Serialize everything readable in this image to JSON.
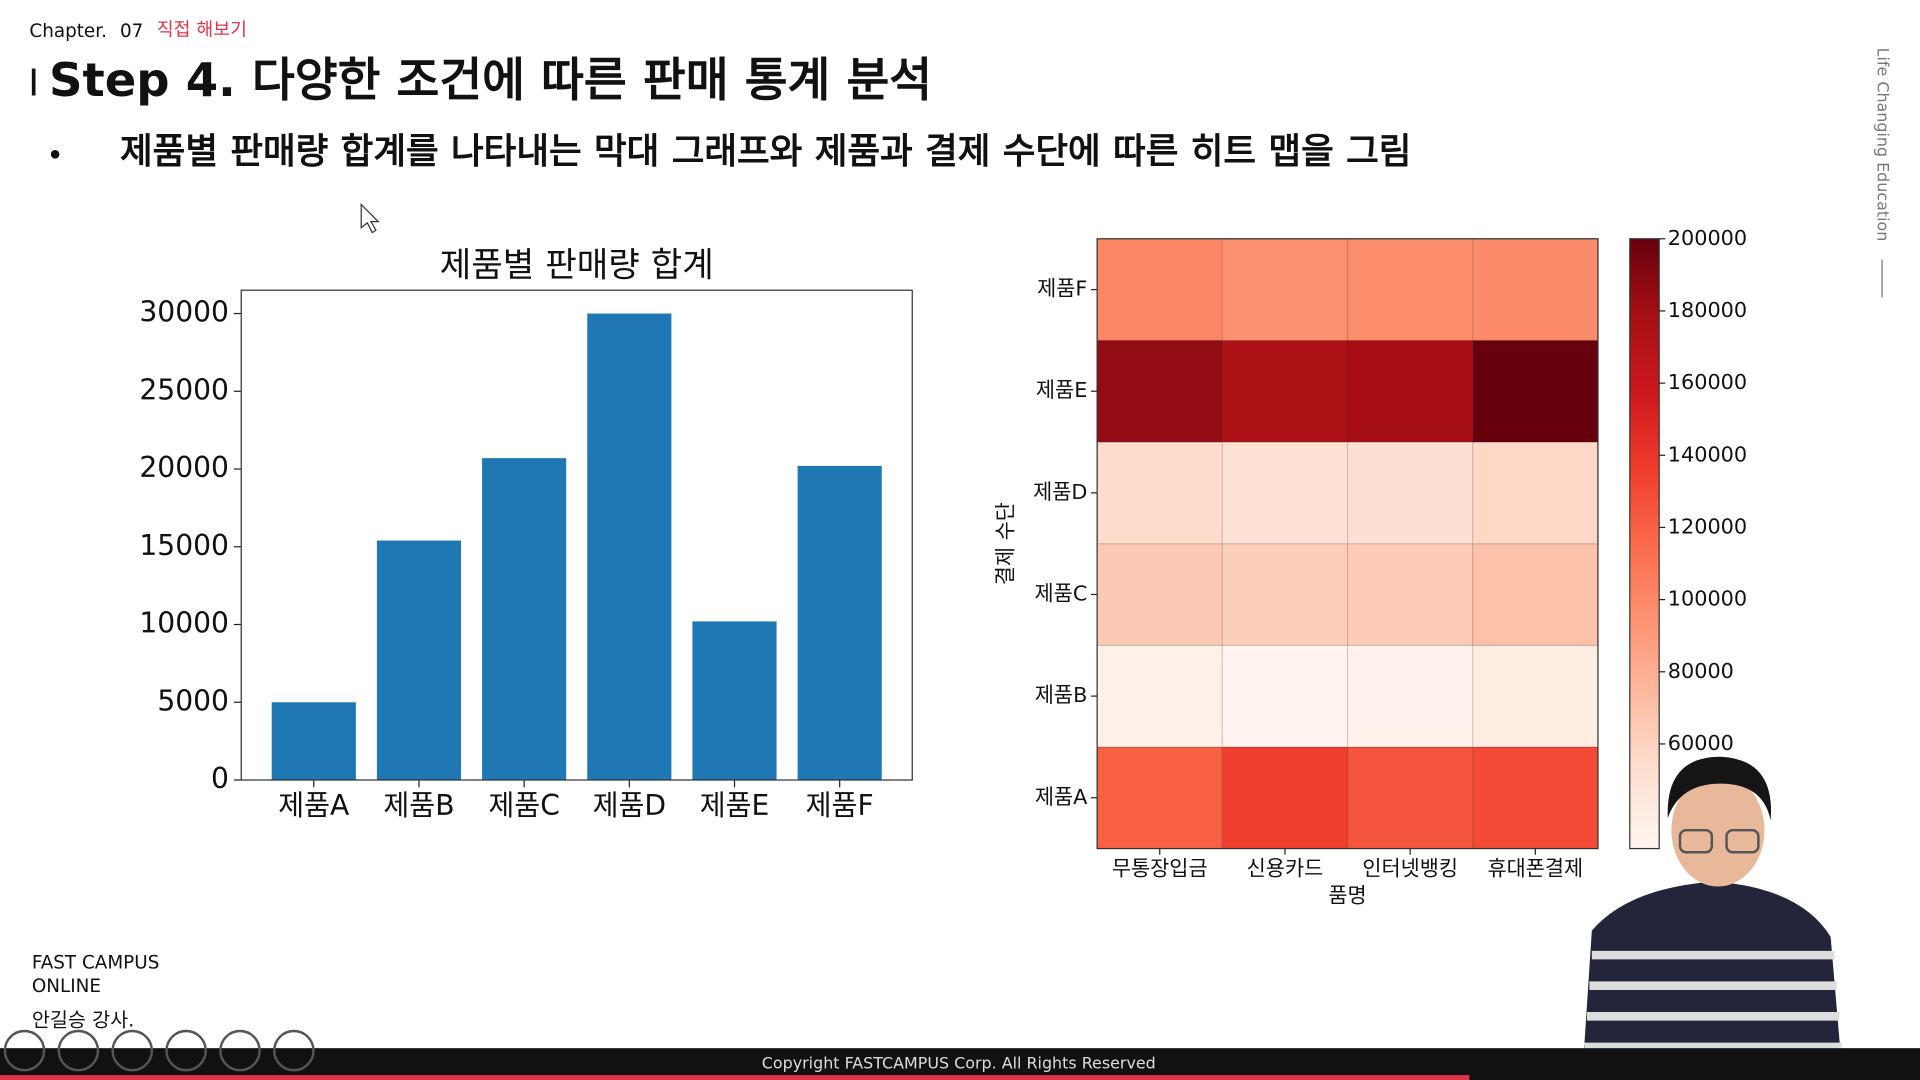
{
  "header": {
    "chapter": "Chapter.",
    "chapter_no": "07",
    "section": "직접 해보기",
    "title": "Step 4. 다양한 조건에 따른 판매 통계 분석",
    "bullet": "제품별 판매량 합계를 나타내는 막대 그래프와 제품과 결제 수단에 따른 히트 맵을 그림"
  },
  "side_text": "Life Changing Education",
  "brand": {
    "line1": "FAST CAMPUS",
    "line2": "ONLINE",
    "instructor": "안길승 강사."
  },
  "footer": "Copyright FASTCAMPUS Corp. All Rights Reserved",
  "chart_data": [
    {
      "type": "bar",
      "title": "제품별 판매량 합계",
      "categories": [
        "제품A",
        "제품B",
        "제품C",
        "제품D",
        "제품E",
        "제품F"
      ],
      "values": [
        5000,
        15400,
        20700,
        30000,
        10200,
        20200
      ],
      "color": "#1f77b4",
      "ylim": [
        0,
        31500
      ],
      "yticks": [
        0,
        5000,
        10000,
        15000,
        20000,
        25000,
        30000
      ]
    },
    {
      "type": "heatmap",
      "xlabel": "품명",
      "ylabel": "결제 수단",
      "x": [
        "무통장입금",
        "신용카드",
        "인터넷뱅킹",
        "휴대폰결제"
      ],
      "y": [
        "제품A",
        "제품B",
        "제품C",
        "제품D",
        "제품E",
        "제품F"
      ],
      "values": [
        [
          120000,
          135000,
          125000,
          130000
        ],
        [
          35000,
          32000,
          34000,
          40000
        ],
        [
          65000,
          62000,
          64000,
          70000
        ],
        [
          55000,
          50000,
          52000,
          57000
        ],
        [
          185000,
          175000,
          178000,
          200000
        ],
        [
          100000,
          95000,
          97000,
          98000
        ]
      ],
      "colormap": "Reds",
      "clim": [
        31000,
        200000
      ],
      "cticks": [
        60000,
        80000,
        100000,
        120000,
        140000,
        160000,
        180000,
        200000
      ]
    }
  ]
}
